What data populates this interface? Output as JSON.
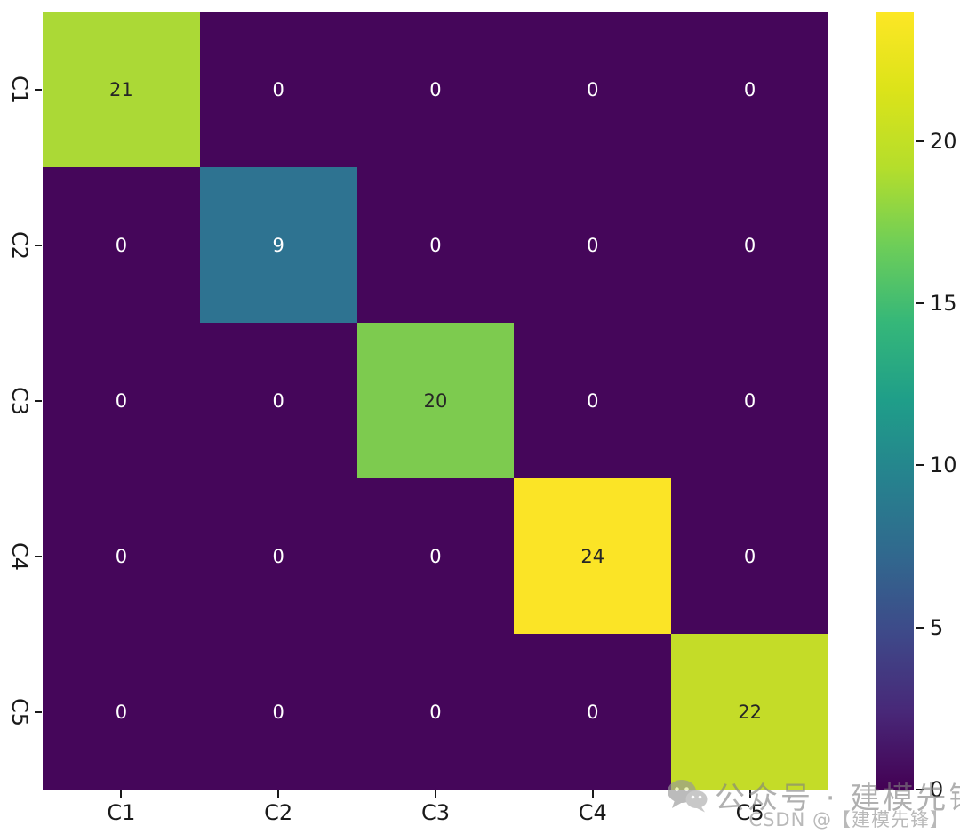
{
  "chart_data": {
    "type": "heatmap",
    "title": "",
    "x_categories": [
      "C1",
      "C2",
      "C3",
      "C4",
      "C5"
    ],
    "y_categories": [
      "C1",
      "C2",
      "C3",
      "C4",
      "C5"
    ],
    "matrix": [
      [
        21,
        0,
        0,
        0,
        0
      ],
      [
        0,
        9,
        0,
        0,
        0
      ],
      [
        0,
        0,
        20,
        0,
        0
      ],
      [
        0,
        0,
        0,
        24,
        0
      ],
      [
        0,
        0,
        0,
        0,
        22
      ]
    ],
    "annotations": true,
    "colormap": "viridis",
    "vmin": 0,
    "vmax": 24,
    "colorbar_ticks": [
      0,
      5,
      10,
      15,
      20
    ],
    "legend_position": "right-colorbar",
    "grid": false
  },
  "colors": {
    "background": "#ffffff",
    "tick_text": "#1a1a1a",
    "annot_dark": "#262626",
    "annot_light": "#ffffff",
    "cell_colors": [
      [
        "#abd936",
        "#45065a",
        "#45065a",
        "#45065a",
        "#45065a"
      ],
      [
        "#45065a",
        "#2e7391",
        "#45065a",
        "#45065a",
        "#45065a"
      ],
      [
        "#45065a",
        "#45065a",
        "#7dcb4f",
        "#45065a",
        "#45065a"
      ],
      [
        "#45065a",
        "#45065a",
        "#45065a",
        "#fbe426",
        "#45065a"
      ],
      [
        "#45065a",
        "#45065a",
        "#45065a",
        "#45065a",
        "#c4dc28"
      ]
    ],
    "viridis_stops": [
      "#440154",
      "#482878",
      "#3e4989",
      "#31688e",
      "#26828e",
      "#1f9e89",
      "#35b779",
      "#6ece58",
      "#b5de2b",
      "#dce319",
      "#fde725"
    ]
  },
  "watermark": {
    "icon": "wechat-icon",
    "line1": "公众号 · 建模先锋",
    "line2": "CSDN @【建模先锋】"
  }
}
